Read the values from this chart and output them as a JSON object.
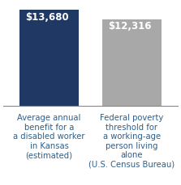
{
  "categories": [
    "Average annual\nbenefit for a\na disabled worker\nin Kansas\n(estimated)",
    "Federal poverty\nthreshold for\na working-age\nperson living\nalone\n(U.S. Census Bureau)"
  ],
  "values": [
    13680,
    12316
  ],
  "labels": [
    "$13,680",
    "$12,316"
  ],
  "bar_colors": [
    "#1f3864",
    "#a8a8a8"
  ],
  "label_color": "#ffffff",
  "xlabel_color": "#2e5f8a",
  "background_color": "#ffffff",
  "ylim": [
    0,
    14800
  ],
  "bar_width": 0.72,
  "label_fontsize": 8.5,
  "xlabel_fontsize": 7.2,
  "spine_color": "#888888"
}
